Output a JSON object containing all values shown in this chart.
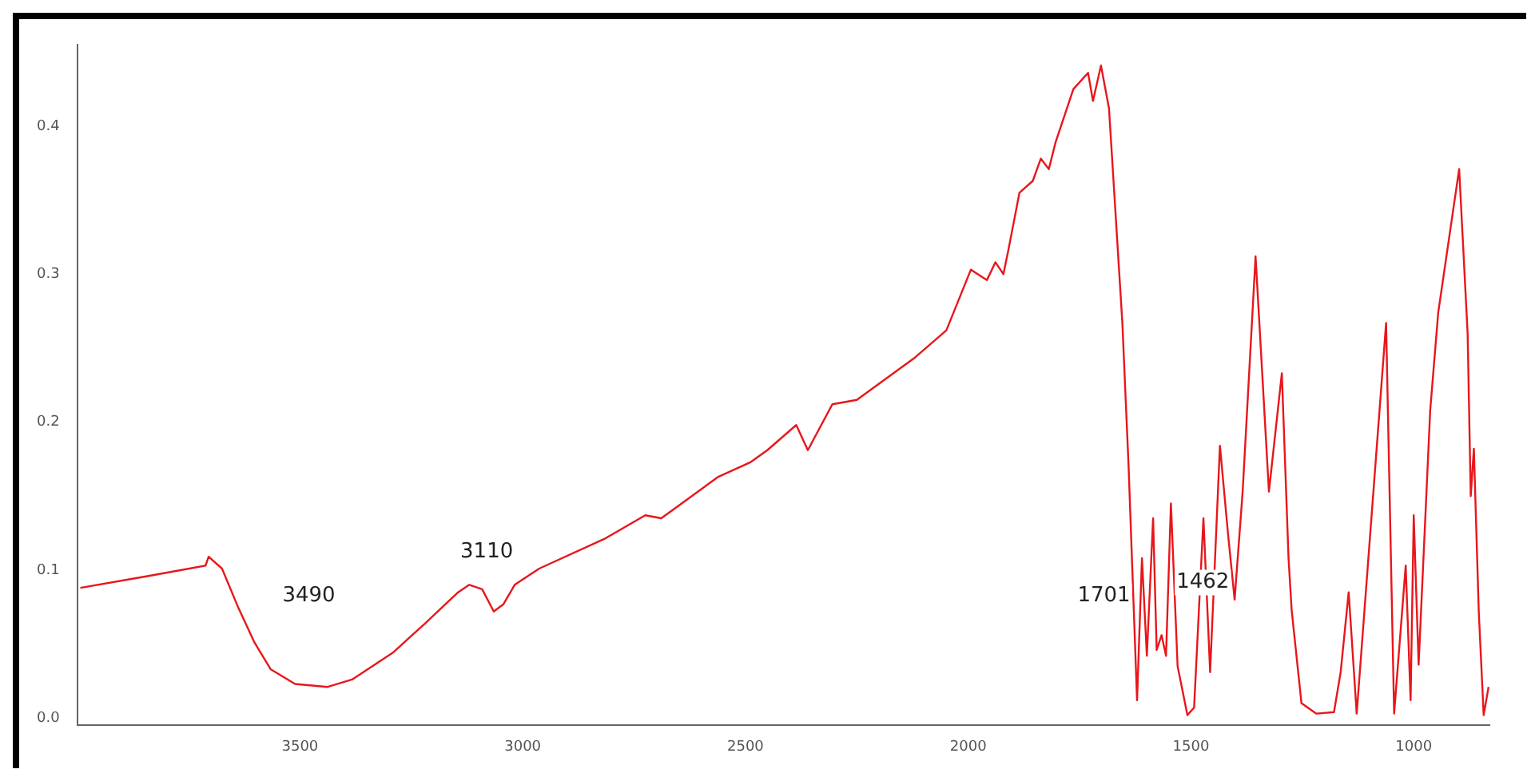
{
  "chart_data": {
    "type": "line",
    "x": [
      3993,
      3840,
      3712,
      3705,
      3675,
      3639,
      3602,
      3566,
      3511,
      3438,
      3383,
      3292,
      3219,
      3145,
      3120,
      3091,
      3065,
      3043,
      3018,
      2963,
      2817,
      2725,
      2689,
      2634,
      2561,
      2488,
      2451,
      2386,
      2360,
      2305,
      2250,
      2122,
      2049,
      1994,
      1958,
      1939,
      1921,
      1910,
      1885,
      1855,
      1837,
      1819,
      1804,
      1764,
      1731,
      1720,
      1702,
      1684,
      1654,
      1640,
      1621,
      1610,
      1599,
      1585,
      1577,
      1566,
      1556,
      1545,
      1530,
      1508,
      1493,
      1472,
      1457,
      1435,
      1417,
      1402,
      1384,
      1355,
      1325,
      1296,
      1281,
      1274,
      1252,
      1219,
      1179,
      1164,
      1146,
      1128,
      1062,
      1044,
      1018,
      1007,
      1000,
      989,
      963,
      945,
      898,
      879,
      872,
      865,
      854,
      843,
      832
    ],
    "series": [
      {
        "color": "#e8161b",
        "values": [
          0.088,
          0.096,
          0.103,
          0.109,
          0.101,
          0.075,
          0.051,
          0.033,
          0.023,
          0.021,
          0.026,
          0.044,
          0.064,
          0.085,
          0.09,
          0.087,
          0.072,
          0.077,
          0.09,
          0.101,
          0.121,
          0.137,
          0.135,
          0.147,
          0.163,
          0.173,
          0.181,
          0.198,
          0.181,
          0.212,
          0.215,
          0.243,
          0.262,
          0.303,
          0.296,
          0.308,
          0.3,
          0.316,
          0.355,
          0.363,
          0.378,
          0.371,
          0.389,
          0.425,
          0.436,
          0.417,
          0.441,
          0.412,
          0.267,
          0.17,
          0.012,
          0.108,
          0.042,
          0.135,
          0.046,
          0.056,
          0.042,
          0.145,
          0.035,
          0.002,
          0.007,
          0.135,
          0.031,
          0.184,
          0.125,
          0.08,
          0.153,
          0.312,
          0.153,
          0.233,
          0.108,
          0.073,
          0.01,
          0.003,
          0.004,
          0.031,
          0.085,
          0.003,
          0.267,
          0.003,
          0.103,
          0.012,
          0.137,
          0.036,
          0.208,
          0.274,
          0.371,
          0.26,
          0.15,
          0.182,
          0.072,
          0.002,
          0.021
        ]
      }
    ],
    "xlim": [
      4000,
      830
    ],
    "xticks": [
      3500,
      3000,
      2500,
      2000,
      1500,
      1000
    ],
    "ylim": [
      -0.005,
      0.455
    ],
    "yticks": [
      {
        "value": 0,
        "label": "0.0"
      },
      0.1,
      0.2,
      0.3,
      0.4
    ],
    "annotations": [
      "3490",
      "3110",
      "1701",
      "1462"
    ],
    "grid": false,
    "legend": false,
    "marker": "none",
    "line_style": "solid"
  }
}
